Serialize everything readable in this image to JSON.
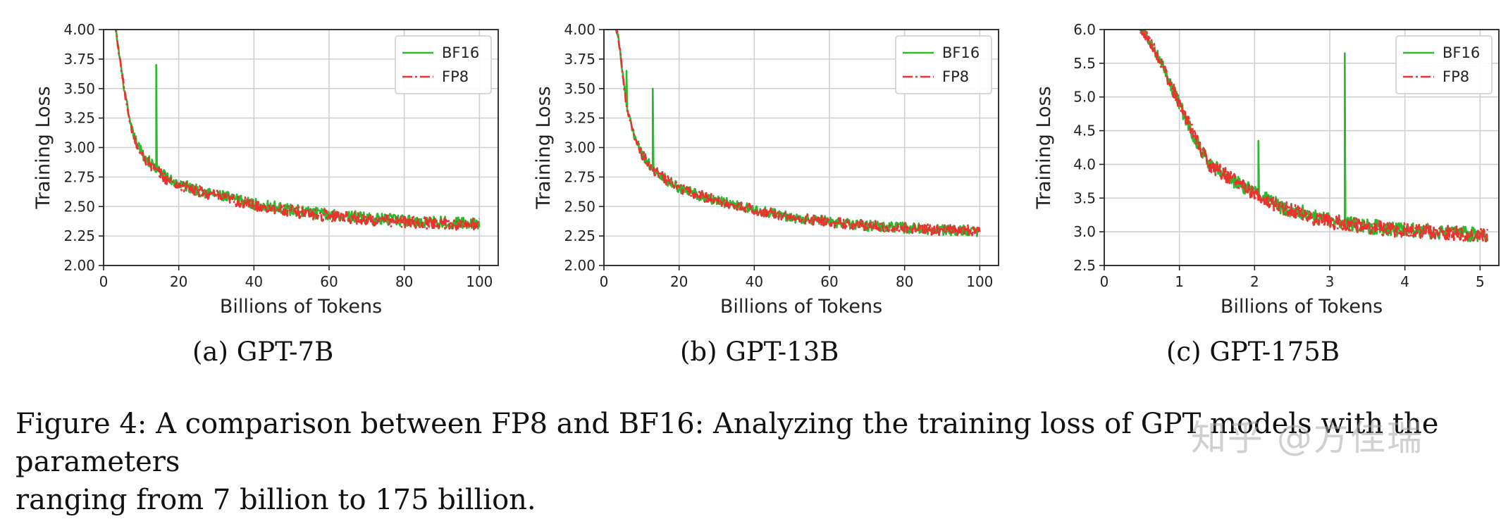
{
  "colors": {
    "bf16": "#2db92d",
    "fp8": "#f03030",
    "grid": "#d0d0d0",
    "axis": "#222222"
  },
  "chart_data": [
    {
      "type": "line",
      "caption": "(a) GPT-7B",
      "xlabel": "Billions of Tokens",
      "ylabel": "Training Loss",
      "xlim": [
        0,
        105
      ],
      "ylim": [
        2.0,
        4.0
      ],
      "xticks": [
        0,
        20,
        40,
        60,
        80,
        100
      ],
      "yticks": [
        2.0,
        2.25,
        2.5,
        2.75,
        3.0,
        3.25,
        3.5,
        3.75,
        4.0
      ],
      "yticklabels": [
        "2.00",
        "2.25",
        "2.50",
        "2.75",
        "3.00",
        "3.25",
        "3.50",
        "3.75",
        "4.00"
      ],
      "legend": {
        "position": "top-right",
        "entries": [
          "BF16",
          "FP8"
        ]
      },
      "series": [
        {
          "name": "BF16",
          "style": "solid",
          "x": [
            3,
            5,
            7,
            9,
            11,
            14,
            14,
            14,
            17,
            20,
            25,
            30,
            35,
            40,
            45,
            50,
            55,
            60,
            65,
            70,
            75,
            80,
            85,
            90,
            95,
            100
          ],
          "y": [
            4.05,
            3.6,
            3.2,
            3.02,
            2.92,
            2.82,
            3.7,
            2.82,
            2.74,
            2.69,
            2.64,
            2.6,
            2.56,
            2.52,
            2.5,
            2.47,
            2.45,
            2.43,
            2.42,
            2.4,
            2.39,
            2.38,
            2.37,
            2.37,
            2.36,
            2.36
          ],
          "noise": 0.05
        },
        {
          "name": "FP8",
          "style": "dashdot",
          "x": [
            3,
            5,
            7,
            9,
            11,
            14,
            17,
            20,
            25,
            30,
            35,
            40,
            45,
            50,
            55,
            60,
            65,
            70,
            75,
            80,
            85,
            90,
            95,
            100
          ],
          "y": [
            4.05,
            3.6,
            3.2,
            3.0,
            2.9,
            2.8,
            2.73,
            2.68,
            2.63,
            2.59,
            2.55,
            2.51,
            2.49,
            2.46,
            2.44,
            2.42,
            2.41,
            2.39,
            2.38,
            2.37,
            2.36,
            2.36,
            2.35,
            2.35
          ],
          "noise": 0.05
        }
      ]
    },
    {
      "type": "line",
      "caption": "(b) GPT-13B",
      "xlabel": "Billions of Tokens",
      "ylabel": "Training Loss",
      "xlim": [
        0,
        105
      ],
      "ylim": [
        2.0,
        4.0
      ],
      "xticks": [
        0,
        20,
        40,
        60,
        80,
        100
      ],
      "yticks": [
        2.0,
        2.25,
        2.5,
        2.75,
        3.0,
        3.25,
        3.5,
        3.75,
        4.0
      ],
      "yticklabels": [
        "2.00",
        "2.25",
        "2.50",
        "2.75",
        "3.00",
        "3.25",
        "3.50",
        "3.75",
        "4.00"
      ],
      "legend": {
        "position": "top-right",
        "entries": [
          "BF16",
          "FP8"
        ]
      },
      "series": [
        {
          "name": "BF16",
          "style": "solid",
          "x": [
            3,
            4,
            6,
            6,
            6,
            8,
            10,
            13,
            13,
            13,
            16,
            20,
            25,
            30,
            35,
            40,
            45,
            50,
            55,
            60,
            65,
            70,
            75,
            80,
            85,
            90,
            95,
            100
          ],
          "y": [
            4.05,
            3.9,
            3.35,
            3.65,
            3.35,
            3.1,
            2.95,
            2.82,
            3.5,
            2.82,
            2.74,
            2.66,
            2.6,
            2.55,
            2.51,
            2.47,
            2.44,
            2.41,
            2.39,
            2.37,
            2.35,
            2.34,
            2.33,
            2.32,
            2.31,
            2.3,
            2.3,
            2.29
          ],
          "noise": 0.045
        },
        {
          "name": "FP8",
          "style": "dashdot",
          "x": [
            3,
            4,
            6,
            8,
            10,
            13,
            16,
            20,
            25,
            30,
            35,
            40,
            45,
            50,
            55,
            60,
            65,
            70,
            75,
            80,
            85,
            90,
            95,
            100
          ],
          "y": [
            4.05,
            3.9,
            3.35,
            3.1,
            2.95,
            2.82,
            2.74,
            2.66,
            2.6,
            2.55,
            2.51,
            2.47,
            2.44,
            2.41,
            2.39,
            2.37,
            2.35,
            2.34,
            2.33,
            2.32,
            2.31,
            2.3,
            2.3,
            2.29
          ],
          "noise": 0.045
        }
      ]
    },
    {
      "type": "line",
      "caption": "(c) GPT-175B",
      "xlabel": "Billions of Tokens",
      "ylabel": "Training Loss",
      "xlim": [
        0,
        5.25
      ],
      "ylim": [
        2.5,
        6.0
      ],
      "xticks": [
        0,
        1,
        2,
        3,
        4,
        5
      ],
      "yticks": [
        2.5,
        3.0,
        3.5,
        4.0,
        4.5,
        5.0,
        5.5,
        6.0
      ],
      "yticklabels": [
        "2.5",
        "3.0",
        "3.5",
        "4.0",
        "4.5",
        "5.0",
        "5.5",
        "6.0"
      ],
      "legend": {
        "position": "top-right",
        "entries": [
          "BF16",
          "FP8"
        ]
      },
      "series": [
        {
          "name": "BF16",
          "style": "solid",
          "x": [
            0.45,
            0.6,
            0.8,
            1.0,
            1.2,
            1.4,
            1.6,
            1.8,
            2.05,
            2.05,
            2.05,
            2.2,
            2.4,
            2.6,
            2.8,
            3.0,
            3.2,
            3.2,
            3.2,
            3.4,
            3.6,
            3.8,
            4.0,
            4.2,
            4.4,
            4.6,
            4.8,
            5.0,
            5.1
          ],
          "y": [
            6.05,
            5.85,
            5.4,
            4.9,
            4.4,
            4.0,
            3.85,
            3.7,
            3.55,
            4.35,
            3.55,
            3.45,
            3.35,
            3.3,
            3.22,
            3.17,
            3.12,
            5.65,
            3.12,
            3.1,
            3.07,
            3.05,
            3.03,
            3.02,
            3.0,
            2.98,
            2.97,
            2.96,
            2.95
          ],
          "noise": 0.11
        },
        {
          "name": "FP8",
          "style": "dashdot",
          "x": [
            0.45,
            0.6,
            0.8,
            1.0,
            1.2,
            1.4,
            1.6,
            1.8,
            2.0,
            2.2,
            2.4,
            2.6,
            2.8,
            3.0,
            3.2,
            3.4,
            3.6,
            3.8,
            4.0,
            4.2,
            4.4,
            4.6,
            4.8,
            5.0,
            5.1
          ],
          "y": [
            6.05,
            5.85,
            5.4,
            4.9,
            4.4,
            4.0,
            3.85,
            3.7,
            3.56,
            3.45,
            3.35,
            3.28,
            3.2,
            3.15,
            3.12,
            3.09,
            3.06,
            3.04,
            3.02,
            3.01,
            3.0,
            2.98,
            2.97,
            2.96,
            2.95
          ],
          "noise": 0.11
        }
      ]
    }
  ],
  "figure_caption": {
    "line1": "Figure 4:  A comparison between FP8 and BF16:  Analyzing the training loss of GPT models with the parameters",
    "line2": "ranging from 7 billion to 175 billion."
  },
  "watermark": "知乎 @方佳瑞"
}
